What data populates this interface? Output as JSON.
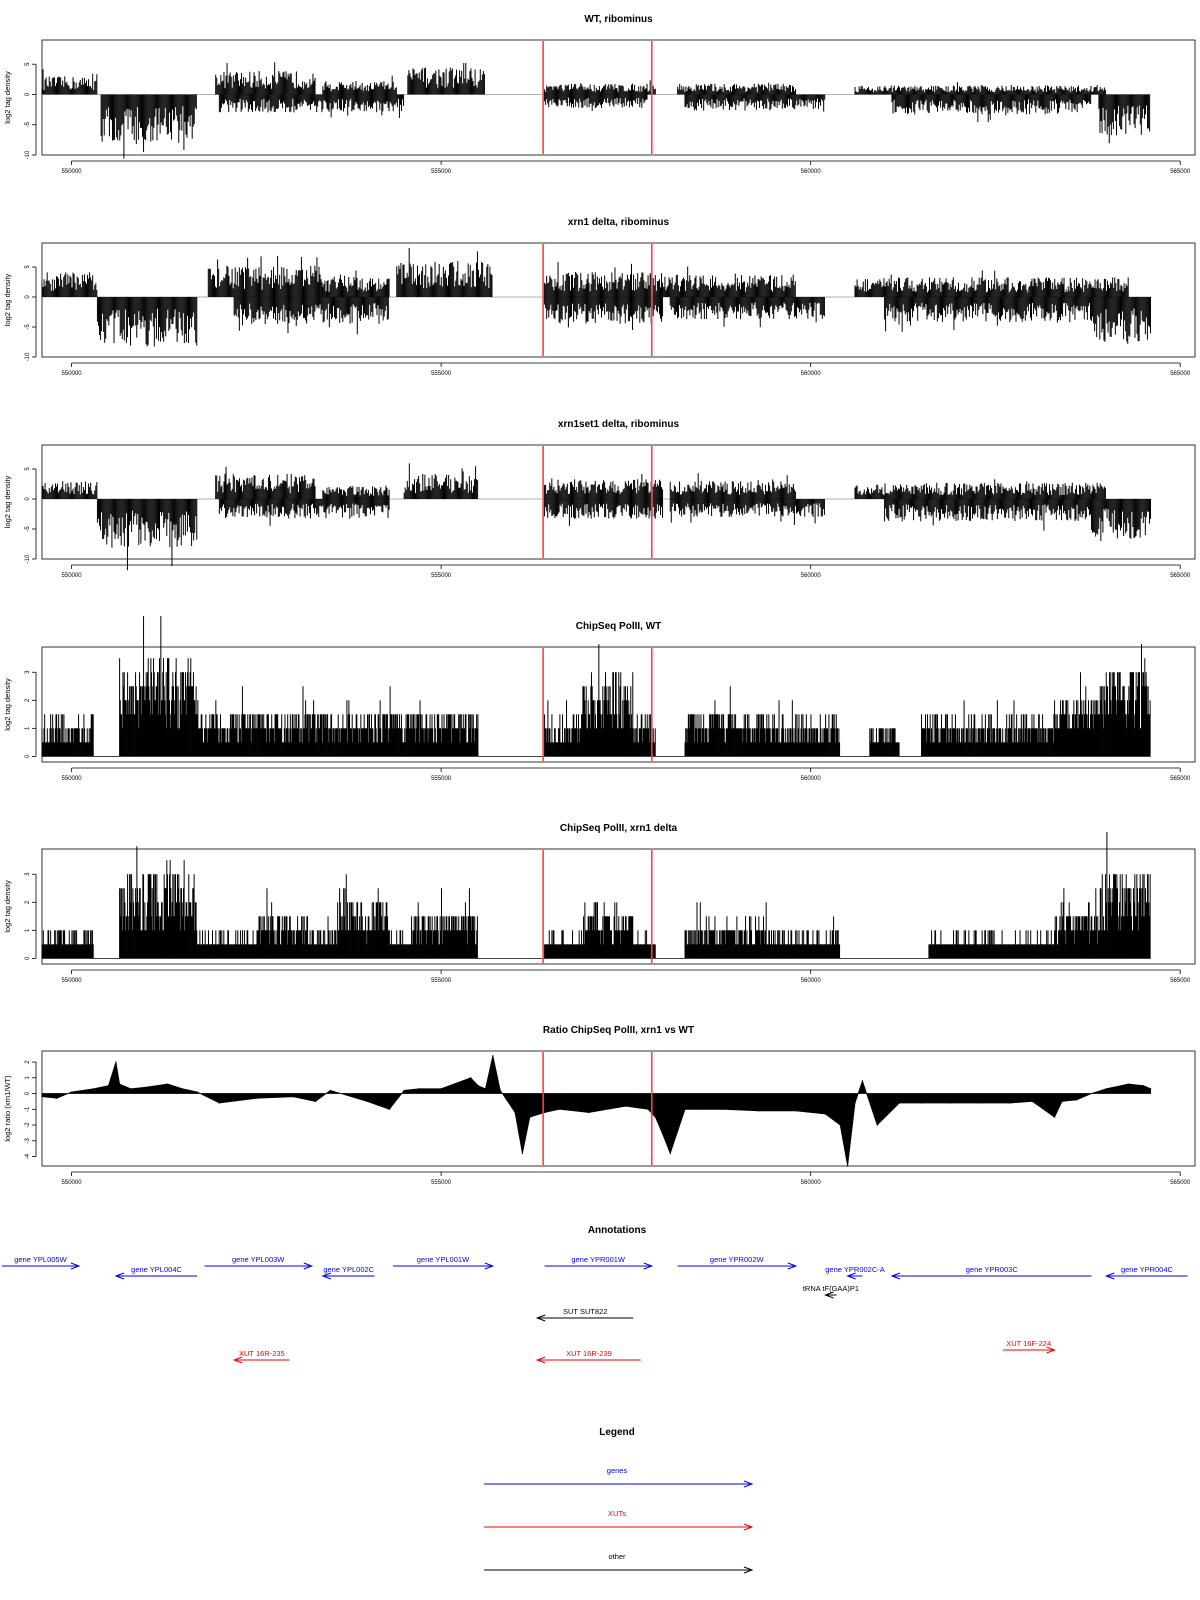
{
  "chart_data": [
    {
      "type": "bar",
      "title": "WT, ribominus",
      "ylabel": "log2 tag density",
      "ylim": [
        -10,
        9
      ],
      "yticks": [
        "-10",
        "-5",
        "0",
        "5"
      ],
      "xlim": [
        549600,
        565200
      ],
      "xticks": [
        "550000",
        "555000",
        "560000",
        "565000"
      ],
      "markers": [
        556380,
        557850
      ],
      "profile": [
        {
          "strand": "+",
          "start": 549600,
          "end": 550350,
          "level": 2
        },
        {
          "strand": "-",
          "start": 550400,
          "end": 551700,
          "level": -5.5
        },
        {
          "strand": "+",
          "start": 551950,
          "end": 553300,
          "level": 2.6
        },
        {
          "strand": "-",
          "start": 552000,
          "end": 554500,
          "level": -2
        },
        {
          "strand": "+",
          "start": 553400,
          "end": 554400,
          "level": 1.5
        },
        {
          "strand": "+",
          "start": 554550,
          "end": 555600,
          "level": 3
        },
        {
          "strand": "+",
          "start": 556400,
          "end": 557900,
          "level": 1.2
        },
        {
          "strand": "-",
          "start": 556400,
          "end": 557800,
          "level": -1.5
        },
        {
          "strand": "+",
          "start": 558200,
          "end": 559800,
          "level": 1.2
        },
        {
          "strand": "-",
          "start": 558300,
          "end": 560200,
          "level": -1.8
        },
        {
          "strand": "+",
          "start": 560600,
          "end": 564000,
          "level": 1
        },
        {
          "strand": "-",
          "start": 561100,
          "end": 563800,
          "level": -2.2
        },
        {
          "strand": "-",
          "start": 563900,
          "end": 564600,
          "level": -4.5
        }
      ]
    },
    {
      "type": "bar",
      "title": "xrn1 delta, ribominus",
      "ylabel": "log2 tag density",
      "ylim": [
        -10,
        9
      ],
      "yticks": [
        "-10",
        "-5",
        "0",
        "5"
      ],
      "xlim": [
        549600,
        565200
      ],
      "xticks": [
        "550000",
        "555000",
        "560000",
        "565000"
      ],
      "markers": [
        556380,
        557850
      ],
      "profile": [
        {
          "strand": "+",
          "start": 549600,
          "end": 550350,
          "level": 2.8
        },
        {
          "strand": "-",
          "start": 550350,
          "end": 551700,
          "level": -5.5
        },
        {
          "strand": "+",
          "start": 551850,
          "end": 553400,
          "level": 3.5
        },
        {
          "strand": "-",
          "start": 552200,
          "end": 554300,
          "level": -3
        },
        {
          "strand": "+",
          "start": 553400,
          "end": 554300,
          "level": 2.5
        },
        {
          "strand": "+",
          "start": 554400,
          "end": 555700,
          "level": 4
        },
        {
          "strand": "+",
          "start": 556400,
          "end": 558000,
          "level": 2.8
        },
        {
          "strand": "-",
          "start": 556400,
          "end": 558000,
          "level": -3
        },
        {
          "strand": "+",
          "start": 558000,
          "end": 559800,
          "level": 2.5
        },
        {
          "strand": "-",
          "start": 558100,
          "end": 560200,
          "level": -2.5
        },
        {
          "strand": "+",
          "start": 560600,
          "end": 564300,
          "level": 2.2
        },
        {
          "strand": "-",
          "start": 561000,
          "end": 563800,
          "level": -2.8
        },
        {
          "strand": "-",
          "start": 563800,
          "end": 564600,
          "level": -5
        }
      ]
    },
    {
      "type": "bar",
      "title": "xrn1set1 delta, ribominus",
      "ylabel": "log2 tag density",
      "ylim": [
        -10,
        9
      ],
      "yticks": [
        "-10",
        "-5",
        "0",
        "5"
      ],
      "xlim": [
        549600,
        565200
      ],
      "xticks": [
        "550000",
        "555000",
        "560000",
        "565000"
      ],
      "markers": [
        556380,
        557850
      ],
      "profile": [
        {
          "strand": "+",
          "start": 549600,
          "end": 550350,
          "level": 2
        },
        {
          "strand": "-",
          "start": 550350,
          "end": 551700,
          "level": -5.5
        },
        {
          "strand": "+",
          "start": 551950,
          "end": 553300,
          "level": 2.8
        },
        {
          "strand": "-",
          "start": 552000,
          "end": 554300,
          "level": -2.2
        },
        {
          "strand": "+",
          "start": 553400,
          "end": 554300,
          "level": 1.5
        },
        {
          "strand": "+",
          "start": 554500,
          "end": 555500,
          "level": 2.8
        },
        {
          "strand": "+",
          "start": 556400,
          "end": 558000,
          "level": 2.2
        },
        {
          "strand": "-",
          "start": 556400,
          "end": 558000,
          "level": -2.2
        },
        {
          "strand": "+",
          "start": 558100,
          "end": 559800,
          "level": 2
        },
        {
          "strand": "-",
          "start": 558100,
          "end": 560200,
          "level": -2
        },
        {
          "strand": "+",
          "start": 560600,
          "end": 564000,
          "level": 1.8
        },
        {
          "strand": "-",
          "start": 561000,
          "end": 563800,
          "level": -2.5
        },
        {
          "strand": "-",
          "start": 563800,
          "end": 564600,
          "level": -4.5
        }
      ]
    },
    {
      "type": "bar",
      "title": "ChipSeq PolII, WT",
      "ylabel": "log2 tag density",
      "ylim": [
        -0.2,
        3.9
      ],
      "yticks": [
        "0",
        "1",
        "2",
        "3"
      ],
      "xlim": [
        549600,
        565200
      ],
      "xticks": [
        "550000",
        "555000",
        "560000",
        "565000"
      ],
      "markers": [
        556380,
        557850
      ],
      "profile": [
        {
          "start": 549600,
          "end": 550300,
          "level": 1
        },
        {
          "start": 550650,
          "end": 551700,
          "level": 2.4
        },
        {
          "start": 551700,
          "end": 555500,
          "level": 1.2
        },
        {
          "start": 556400,
          "end": 556900,
          "level": 1
        },
        {
          "start": 556900,
          "end": 557600,
          "level": 2
        },
        {
          "start": 557600,
          "end": 557900,
          "level": 1
        },
        {
          "start": 558300,
          "end": 559500,
          "level": 1.2
        },
        {
          "start": 559500,
          "end": 560400,
          "level": 1
        },
        {
          "start": 560800,
          "end": 561200,
          "level": 0.8
        },
        {
          "start": 561500,
          "end": 563300,
          "level": 1
        },
        {
          "start": 563300,
          "end": 563900,
          "level": 1.6
        },
        {
          "start": 563900,
          "end": 564600,
          "level": 2.2
        }
      ]
    },
    {
      "type": "bar",
      "title": "ChipSeq PolII, xrn1 delta",
      "ylabel": "log2 tag density",
      "ylim": [
        -0.2,
        3.9
      ],
      "yticks": [
        "0",
        "1",
        "2",
        "3"
      ],
      "xlim": [
        549600,
        565200
      ],
      "xticks": [
        "550000",
        "555000",
        "560000",
        "565000"
      ],
      "markers": [
        556380,
        557850
      ],
      "profile": [
        {
          "start": 549600,
          "end": 550300,
          "level": 0.7
        },
        {
          "start": 550650,
          "end": 551700,
          "level": 2.3
        },
        {
          "start": 551700,
          "end": 552500,
          "level": 0.6
        },
        {
          "start": 552500,
          "end": 553200,
          "level": 1.2
        },
        {
          "start": 553200,
          "end": 553600,
          "level": 0.7
        },
        {
          "start": 553600,
          "end": 554300,
          "level": 1.6
        },
        {
          "start": 554300,
          "end": 554600,
          "level": 0.6
        },
        {
          "start": 554600,
          "end": 555500,
          "level": 1.2
        },
        {
          "start": 556400,
          "end": 556900,
          "level": 0.6
        },
        {
          "start": 556900,
          "end": 557600,
          "level": 1.3
        },
        {
          "start": 557600,
          "end": 557900,
          "level": 0.6
        },
        {
          "start": 558300,
          "end": 559500,
          "level": 0.9
        },
        {
          "start": 559500,
          "end": 560400,
          "level": 0.6
        },
        {
          "start": 561600,
          "end": 563300,
          "level": 0.6
        },
        {
          "start": 563300,
          "end": 563900,
          "level": 1.3
        },
        {
          "start": 563900,
          "end": 564600,
          "level": 2.2
        }
      ]
    },
    {
      "type": "area",
      "title": "Ratio ChipSeq PolII, xrn1 vs WT",
      "ylabel": "log2 ratio (xrn1/WT)",
      "ylim": [
        -4.6,
        2.7
      ],
      "yticks": [
        "-4",
        "-3",
        "-2",
        "-1",
        "0",
        "1",
        "2"
      ],
      "xlim": [
        549600,
        565200
      ],
      "xticks": [
        "550000",
        "555000",
        "560000",
        "565000"
      ],
      "markers": [
        556380,
        557850
      ],
      "x": [
        549600,
        549800,
        550000,
        550300,
        550500,
        550600,
        550650,
        550800,
        551000,
        551300,
        551500,
        551700,
        552000,
        552500,
        553000,
        553300,
        553500,
        554000,
        554300,
        554500,
        554700,
        555000,
        555400,
        555500,
        555600,
        555700,
        555800,
        556000,
        556100,
        556200,
        556400,
        556600,
        557000,
        557500,
        557800,
        557900,
        558000,
        558100,
        558300,
        558500,
        558800,
        559300,
        559800,
        560200,
        560400,
        560500,
        560600,
        560700,
        560900,
        561200,
        561500,
        561900,
        562300,
        562700,
        563000,
        563300,
        563400,
        563600,
        563800,
        564000,
        564300,
        564500,
        564600
      ],
      "values": [
        -0.2,
        -0.3,
        0.1,
        0.3,
        0.5,
        2.0,
        0.6,
        0.3,
        0.4,
        0.6,
        0.3,
        0.1,
        -0.6,
        -0.3,
        -0.2,
        -0.5,
        0.2,
        -0.5,
        -1.0,
        0.2,
        0.3,
        0.3,
        1.0,
        0.5,
        0.3,
        2.4,
        0.2,
        -1.2,
        -3.8,
        -1.5,
        -1.2,
        -1.0,
        -1.2,
        -0.8,
        -1.0,
        -1.5,
        -2.6,
        -3.8,
        -1.0,
        -1.0,
        -1.0,
        -1.1,
        -1.1,
        -1.3,
        -2.0,
        -4.6,
        -0.6,
        0.8,
        -2.0,
        -0.6,
        -0.6,
        -0.6,
        -0.6,
        -0.6,
        -0.5,
        -1.5,
        -0.5,
        -0.4,
        0.0,
        0.3,
        0.6,
        0.5,
        0.3
      ]
    }
  ],
  "annotations": {
    "title": "Annotations",
    "features": [
      {
        "label": "gene YPL005W",
        "type": "gene",
        "start": 549000,
        "end": 550100,
        "dir": "+",
        "row": 0
      },
      {
        "label": "gene YPL004C",
        "type": "gene",
        "start": 550600,
        "end": 551700,
        "dir": "-",
        "row": 1
      },
      {
        "label": "gene YPL003W",
        "type": "gene",
        "start": 551800,
        "end": 553250,
        "dir": "+",
        "row": 0
      },
      {
        "label": "gene YPL002C",
        "type": "gene",
        "start": 553400,
        "end": 554100,
        "dir": "-",
        "row": 1
      },
      {
        "label": "gene YPL001W",
        "type": "gene",
        "start": 554350,
        "end": 555700,
        "dir": "+",
        "row": 0
      },
      {
        "label": "gene YPR001W",
        "type": "gene",
        "start": 556400,
        "end": 557850,
        "dir": "+",
        "row": 0
      },
      {
        "label": "gene YPR002W",
        "type": "gene",
        "start": 558200,
        "end": 559800,
        "dir": "+",
        "row": 0
      },
      {
        "label": "gene YPR002C-A",
        "type": "gene",
        "start": 560500,
        "end": 560700,
        "dir": "-",
        "row": 1
      },
      {
        "label": "gene YPR003C",
        "type": "gene",
        "start": 561100,
        "end": 563800,
        "dir": "-",
        "row": 1
      },
      {
        "label": "gene YPR004C",
        "type": "gene",
        "start": 564000,
        "end": 565100,
        "dir": "-",
        "row": 1
      },
      {
        "label": "tRNA tF(GAA)P1",
        "type": "other",
        "start": 560200,
        "end": 560350,
        "dir": "-",
        "row": 2
      },
      {
        "label": "SUT SUT822",
        "type": "other",
        "start": 556300,
        "end": 557600,
        "dir": "-",
        "row": 3
      },
      {
        "label": "XUT 16R-235",
        "type": "xut",
        "start": 552200,
        "end": 552950,
        "dir": "-",
        "row": 5
      },
      {
        "label": "XUT 16R-239",
        "type": "xut",
        "start": 556300,
        "end": 557700,
        "dir": "-",
        "row": 5
      },
      {
        "label": "XUT 16F-224",
        "type": "xut",
        "start": 562600,
        "end": 563300,
        "dir": "+",
        "row": 4
      }
    ]
  },
  "legend": {
    "title": "Legend",
    "items": [
      {
        "label": "genes",
        "type": "gene"
      },
      {
        "label": "XUTs",
        "type": "xut"
      },
      {
        "label": "other",
        "type": "other"
      }
    ]
  },
  "colors": {
    "gene": "#0000ee",
    "xut": "#ee0000",
    "other": "#000000",
    "marker": "#ff4040",
    "bars": "#000000",
    "zero_line": "#999999"
  }
}
